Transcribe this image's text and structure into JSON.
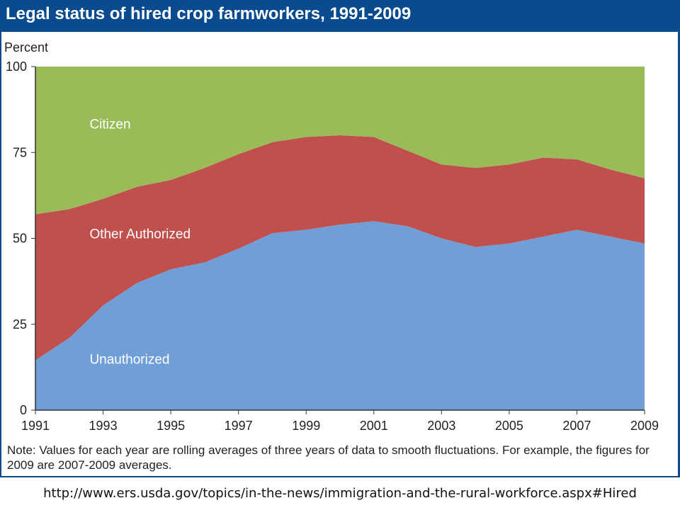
{
  "title": "Legal status of hired crop farmworkers, 1991-2009",
  "note": "Note:  Values for each year are rolling averages of three years of data to smooth fluctuations.  For example, the figures for 2009 are 2007-2009 averages.",
  "source_url": "http://www.ers.usda.gov/topics/in-the-news/immigration-and-the-rural-workforce.aspx#Hired",
  "colors": {
    "header": "#0a4a8f",
    "unauthorized": "#6f9fd6",
    "other_authorized": "#c0504d",
    "citizen": "#9bbb59"
  },
  "chart_data": {
    "type": "area",
    "stacked": true,
    "title": "Legal status of hired crop farmworkers, 1991-2009",
    "ylabel": "Percent",
    "xlabel": "",
    "ylim": [
      0,
      100
    ],
    "xlim": [
      1991,
      2009
    ],
    "y_ticks": [
      0,
      25,
      50,
      75,
      100
    ],
    "x_ticks": [
      1991,
      1993,
      1995,
      1997,
      1999,
      2001,
      2003,
      2005,
      2007,
      2009
    ],
    "grid": false,
    "legend": "inline labels",
    "x": [
      1991,
      1992,
      1993,
      1994,
      1995,
      1996,
      1997,
      1998,
      1999,
      2000,
      2001,
      2002,
      2003,
      2004,
      2005,
      2006,
      2007,
      2008,
      2009
    ],
    "series": [
      {
        "name": "Unauthorized",
        "color": "#6f9fd6",
        "values": [
          14.5,
          21,
          30.5,
          37,
          41,
          43,
          47,
          51.5,
          52.5,
          54,
          55,
          53.5,
          50,
          47.5,
          48.5,
          50.5,
          52.5,
          50.5,
          48.5
        ]
      },
      {
        "name": "Other Authorized",
        "color": "#c0504d",
        "values": [
          42.5,
          37.5,
          31,
          28,
          26,
          27.5,
          27.5,
          26.5,
          27,
          26,
          24.5,
          22,
          21.5,
          23,
          23,
          23,
          20.5,
          19.5,
          19
        ]
      },
      {
        "name": "Citizen",
        "color": "#9bbb59",
        "values": [
          43,
          41.5,
          38.5,
          35,
          33,
          29.5,
          25.5,
          22,
          20.5,
          20,
          20.5,
          24.5,
          28.5,
          29.5,
          28.5,
          26.5,
          27,
          30,
          32.5
        ]
      }
    ],
    "label_positions": [
      {
        "series": "Citizen",
        "x": 1992.6,
        "y": 82
      },
      {
        "series": "Other Authorized",
        "x": 1992.6,
        "y": 50
      },
      {
        "series": "Unauthorized",
        "x": 1992.6,
        "y": 13.5
      }
    ]
  }
}
